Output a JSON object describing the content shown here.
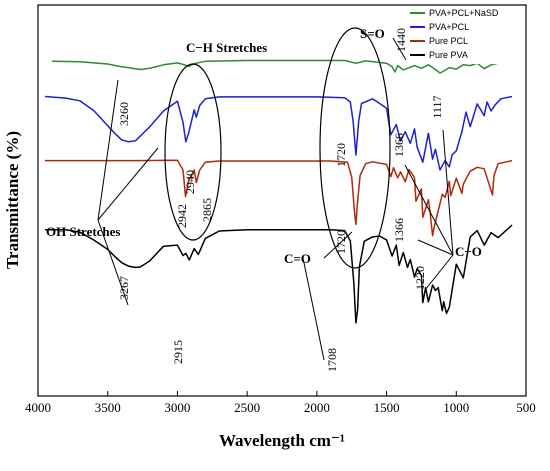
{
  "chart_data": {
    "type": "line",
    "xlabel": "Wavelength cm⁻¹",
    "ylabel": "Transmittance (%)",
    "xlim": [
      4000,
      500
    ],
    "xticks": [
      4000,
      3500,
      3000,
      2500,
      2000,
      1500,
      1000,
      500
    ],
    "ylim": [
      0,
      100
    ],
    "y_tick_labels_shown": false,
    "grid": false,
    "legend_position": "top-right",
    "series": [
      {
        "name": "PVA+PCL+NaSD",
        "color": "#2e8b2e",
        "x": [
          3900,
          3700,
          3500,
          3400,
          3300,
          3260,
          3200,
          3100,
          3000,
          2950,
          2920,
          2880,
          2800,
          2500,
          2200,
          1800,
          1720,
          1650,
          1500,
          1460,
          1440,
          1420,
          1380,
          1300,
          1250,
          1200,
          1150,
          1117,
          1080,
          1050,
          1000,
          950,
          900,
          850,
          800,
          750,
          700,
          650,
          600
        ],
        "values": [
          85.6,
          85.5,
          84.9,
          84.2,
          83.7,
          83.5,
          83.8,
          84.7,
          85.2,
          84.7,
          84.3,
          85.0,
          85.6,
          85.8,
          85.8,
          85.8,
          85.1,
          85.7,
          85.1,
          84.2,
          82.9,
          84.5,
          83.4,
          84.5,
          83.8,
          84.7,
          83.5,
          82.6,
          83.3,
          84.0,
          83.6,
          84.7,
          84.5,
          85.1,
          83.7,
          84.7,
          85.1,
          85.8,
          86.5
        ]
      },
      {
        "name": "PVA+PCL",
        "color": "#1f1fd6",
        "x": [
          3950,
          3800,
          3700,
          3600,
          3500,
          3450,
          3400,
          3350,
          3300,
          3200,
          3100,
          3000,
          2960,
          2940,
          2920,
          2880,
          2865,
          2840,
          2800,
          2700,
          2500,
          2200,
          2000,
          1800,
          1760,
          1740,
          1720,
          1700,
          1680,
          1600,
          1500,
          1470,
          1430,
          1400,
          1366,
          1330,
          1300,
          1280,
          1240,
          1200,
          1170,
          1150,
          1117,
          1100,
          1080,
          1050,
          1030,
          1000,
          960,
          930,
          900,
          850,
          800,
          780,
          750,
          720,
          680,
          600
        ],
        "values": [
          76.6,
          76.2,
          75.5,
          73.0,
          69.1,
          67.2,
          65.5,
          65.0,
          65.3,
          68.8,
          72.9,
          75.4,
          70.0,
          65.0,
          67.2,
          73.2,
          71.3,
          74.3,
          76.0,
          76.5,
          76.5,
          76.5,
          76.5,
          76.3,
          75.2,
          70.3,
          61.6,
          70.3,
          74.8,
          76.0,
          73.6,
          66.8,
          69.4,
          65.2,
          67.6,
          64.6,
          68.3,
          63.6,
          59.8,
          67.2,
          60.6,
          63.1,
          57.8,
          58.9,
          60.2,
          58.6,
          61.7,
          62.7,
          67.6,
          72.6,
          68.9,
          74.7,
          71.7,
          75.2,
          72.9,
          74.5,
          76.0,
          76.6
        ]
      },
      {
        "name": "Pure PCL",
        "color": "#b02a0a",
        "x": [
          3950,
          3600,
          3300,
          3000,
          2960,
          2942,
          2920,
          2880,
          2865,
          2840,
          2800,
          2700,
          2500,
          2200,
          1900,
          1780,
          1750,
          1730,
          1720,
          1710,
          1690,
          1650,
          1600,
          1500,
          1470,
          1450,
          1420,
          1400,
          1366,
          1340,
          1300,
          1290,
          1250,
          1240,
          1200,
          1190,
          1170,
          1160,
          1100,
          1080,
          1050,
          1040,
          1000,
          960,
          950,
          900,
          850,
          800,
          740,
          730,
          700,
          600
        ],
        "values": [
          60.2,
          60.2,
          60.2,
          60.3,
          57.8,
          51.0,
          55.1,
          57.8,
          54.6,
          57.8,
          59.8,
          60.1,
          60.1,
          60.1,
          60.1,
          59.8,
          56.0,
          47.0,
          43.9,
          49.0,
          56.4,
          59.4,
          59.9,
          59.2,
          56.1,
          58.4,
          55.8,
          57.3,
          54.8,
          57.9,
          55.9,
          49.8,
          53.0,
          45.7,
          50.2,
          47.6,
          41.0,
          43.0,
          51.6,
          50.8,
          54.9,
          51.2,
          55.7,
          51.8,
          54.2,
          57.5,
          58.5,
          58.1,
          51.4,
          56.3,
          59.4,
          60.2
        ]
      },
      {
        "name": "Pure PVA",
        "color": "#000000",
        "x": [
          3950,
          3800,
          3700,
          3600,
          3500,
          3450,
          3400,
          3350,
          3300,
          3267,
          3200,
          3100,
          3000,
          2960,
          2940,
          2915,
          2880,
          2850,
          2800,
          2700,
          2500,
          2200,
          1900,
          1800,
          1760,
          1735,
          1720,
          1708,
          1695,
          1660,
          1600,
          1550,
          1500,
          1460,
          1430,
          1410,
          1380,
          1350,
          1330,
          1300,
          1280,
          1250,
          1240,
          1220,
          1200,
          1170,
          1150,
          1130,
          1100,
          1090,
          1070,
          1050,
          1000,
          950,
          900,
          850,
          800,
          750,
          700,
          600
        ],
        "values": [
          42.5,
          42.5,
          41.9,
          39.9,
          37.5,
          35.7,
          34.1,
          33.2,
          32.9,
          33.0,
          34.5,
          38.3,
          38.6,
          35.9,
          36.5,
          34.8,
          37.7,
          36.2,
          40.3,
          42.2,
          42.5,
          42.5,
          42.5,
          42.3,
          39.7,
          29.0,
          18.7,
          22.1,
          33.1,
          39.6,
          40.7,
          40.9,
          39.9,
          35.8,
          38.6,
          33.4,
          36.7,
          32.9,
          34.9,
          30.4,
          32.6,
          30.8,
          23.9,
          27.7,
          24.1,
          28.4,
          27.0,
          27.7,
          21.8,
          24.1,
          21.1,
          22.7,
          33.7,
          30.2,
          40.7,
          42.3,
          38.6,
          41.8,
          40.5,
          43.7
        ]
      }
    ],
    "annotations": [
      {
        "text": "C−H Stretches",
        "points_to": "ellipse around 2865–2942 cm⁻¹ peaks"
      },
      {
        "text": "S=O",
        "points_to": "1440 peak of PVA+PCL+NaSD"
      },
      {
        "text": "OH Stretches",
        "points_to": "3260 and 3267 bands"
      },
      {
        "text": "C=O",
        "points_to": "1720 and 1708 peaks"
      },
      {
        "text": "C−O",
        "points_to": "1366, 1220 and 1117 peaks"
      }
    ],
    "peak_labels": [
      "1440",
      "3260",
      "2940",
      "1720",
      "1366",
      "1117",
      "2942",
      "2865",
      "1720",
      "1366",
      "1220",
      "3267",
      "2915",
      "1708"
    ]
  }
}
